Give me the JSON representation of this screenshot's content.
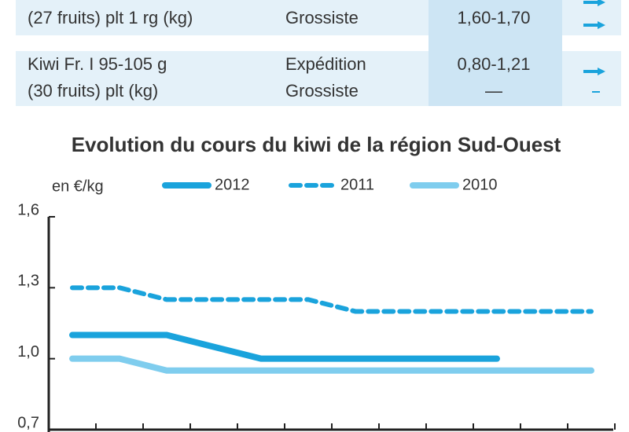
{
  "table": {
    "rows": [
      {
        "product": [
          "(27 fruits) plt 1 rg (kg)"
        ],
        "stage": [
          "Grossiste"
        ],
        "price": [
          "1,60-1,70"
        ]
      },
      {
        "product": [
          "Kiwi Fr. I 95-105 g",
          "(30 fruits) plt (kg)"
        ],
        "stage": [
          "Expédition",
          "Grossiste"
        ],
        "price": [
          "0,80-1,21",
          "—"
        ]
      }
    ]
  },
  "chart_data": {
    "type": "line",
    "title": "Evolution du cours du kiwi de la région Sud-Ouest",
    "ylabel": "en €/kg",
    "categories": [
      null,
      null,
      null,
      null,
      null,
      null,
      null,
      null,
      null,
      null,
      null,
      null
    ],
    "series": [
      {
        "name": "2012",
        "color": "#1aa3dc",
        "dashed": false,
        "values": [
          1.1,
          1.1,
          1.1,
          1.05,
          1.0,
          1.0,
          1.0,
          1.0,
          1.0,
          1.0,
          null,
          null
        ]
      },
      {
        "name": "2011",
        "color": "#1aa3dc",
        "dashed": true,
        "values": [
          1.3,
          1.3,
          1.25,
          1.25,
          1.25,
          1.25,
          1.2,
          1.2,
          1.2,
          1.2,
          1.2,
          1.2
        ]
      },
      {
        "name": "2010",
        "color": "#7fcdee",
        "dashed": false,
        "values": [
          1.0,
          1.0,
          0.95,
          0.95,
          0.95,
          0.95,
          0.95,
          0.95,
          0.95,
          0.95,
          0.95,
          0.95
        ]
      }
    ],
    "ylim": [
      0.7,
      1.6
    ],
    "yticks": [
      {
        "value": 0.7,
        "label": "0,7"
      },
      {
        "value": 1.0,
        "label": "1,0"
      },
      {
        "value": 1.3,
        "label": "1,3"
      },
      {
        "value": 1.6,
        "label": "1,6"
      }
    ]
  }
}
